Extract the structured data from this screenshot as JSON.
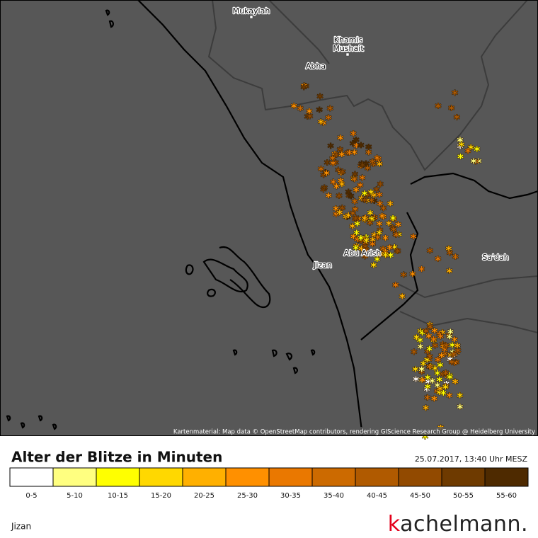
{
  "map": {
    "places": [
      {
        "name": "Mukaylah"
      },
      {
        "name": [
          "Khamis",
          "Mushait"
        ]
      },
      {
        "name": "Abha"
      },
      {
        "name": "Abu Arish"
      },
      {
        "name": "Jizan"
      },
      {
        "name": "Sa'dah"
      }
    ],
    "attribution": "Kartenmaterial: Map data © OpenStreetMap contributors, rendering GIScience Research Group @ Heidelberg University"
  },
  "legend": {
    "title": "Alter der Blitze in Minuten",
    "timestamp": "25.07.2017, 13:40 Uhr MESZ",
    "bins": [
      {
        "label": "0-5",
        "color": "#ffffff"
      },
      {
        "label": "5-10",
        "color": "#ffff80"
      },
      {
        "label": "10-15",
        "color": "#ffff00"
      },
      {
        "label": "15-20",
        "color": "#ffd800"
      },
      {
        "label": "20-25",
        "color": "#ffb000"
      },
      {
        "label": "25-30",
        "color": "#ff9000"
      },
      {
        "label": "30-35",
        "color": "#ea7800"
      },
      {
        "label": "35-40",
        "color": "#cc6a00"
      },
      {
        "label": "40-45",
        "color": "#b05a00"
      },
      {
        "label": "45-50",
        "color": "#924a00"
      },
      {
        "label": "50-55",
        "color": "#6e3a00"
      },
      {
        "label": "55-60",
        "color": "#4e2a00"
      }
    ]
  },
  "footer": {
    "location": "Jizan",
    "brand": "kachelmann."
  }
}
